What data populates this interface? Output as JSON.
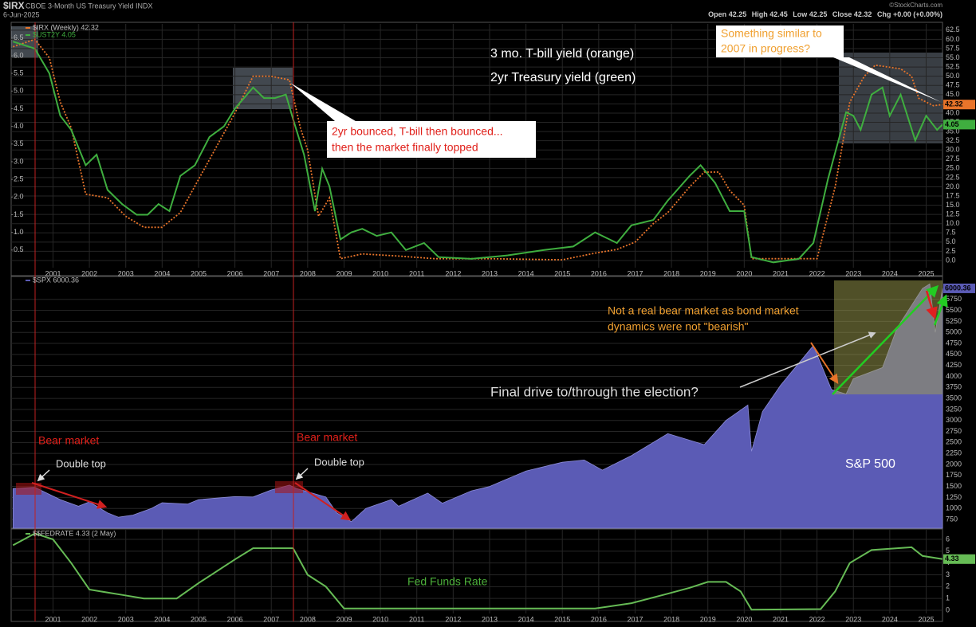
{
  "header": {
    "symbol": "$IRX",
    "description": "CBOE 3-Month US Treasury Yield INDX",
    "date": "6-Jun-2025",
    "source": "©StockCharts.com",
    "stats": [
      {
        "label": "Open",
        "value": 42.25
      },
      {
        "label": "High",
        "value": 42.45
      },
      {
        "label": "Low",
        "value": 42.25
      },
      {
        "label": "Close",
        "value": 42.32
      },
      {
        "label": "Chg",
        "value": "+0.00 (+0.00%)"
      }
    ]
  },
  "chart_data": [
    {
      "type": "line",
      "grid": true,
      "xlim": [
        1999.85,
        2025.45
      ],
      "xticks": [
        2001,
        2002,
        2003,
        2004,
        2005,
        2006,
        2007,
        2008,
        2009,
        2010,
        2011,
        2012,
        2013,
        2014,
        2015,
        2016,
        2017,
        2018,
        2019,
        2020,
        2021,
        2022,
        2023,
        2024,
        2025
      ],
      "ylim": [
        0,
        6.9
      ],
      "yticks": [
        0.5,
        {
          "value": 1,
          "label": "1.0"
        },
        1.5,
        {
          "value": 2,
          "label": "2.0"
        },
        2.5,
        {
          "value": 3,
          "label": "3.0"
        },
        3.5,
        {
          "value": 4,
          "label": "4.0"
        },
        4.5,
        {
          "value": 5,
          "label": "5.0"
        },
        5.5,
        {
          "value": 6,
          "label": "6.0"
        },
        6.5
      ],
      "y2lim": [
        -1.95,
        64.2
      ],
      "y2ticks": [
        {
          "value": 0,
          "label": "0.0"
        },
        2.5,
        {
          "value": 5,
          "label": "5.0"
        },
        7.5,
        {
          "value": 10,
          "label": "10.0"
        },
        12.5,
        {
          "value": 15,
          "label": "15.0"
        },
        17.5,
        {
          "value": 20,
          "label": "20.0"
        },
        22.5,
        {
          "value": 25,
          "label": "25.0"
        },
        27.5,
        {
          "value": 30,
          "label": "30.0"
        },
        32.5,
        {
          "value": 35,
          "label": "35.0"
        },
        37.5,
        {
          "value": 40,
          "label": "40.0"
        },
        42.5,
        {
          "value": 45,
          "label": "45.0"
        },
        47.5,
        {
          "value": 50,
          "label": "50.0"
        },
        52.5,
        {
          "value": 55,
          "label": "55.0"
        },
        57.5,
        {
          "value": 60,
          "label": "60.0"
        },
        62.5
      ],
      "series": [
        {
          "name": "$IRX (Weekly) 42.32",
          "color": "#e8742a",
          "dashed": true,
          "axis": "y2",
          "x": [
            1999.9,
            2000.5,
            2000.9,
            2001.2,
            2001.5,
            2001.9,
            2002.5,
            2003.0,
            2003.5,
            2004.0,
            2004.5,
            2005.0,
            2005.5,
            2006.0,
            2006.5,
            2007.0,
            2007.5,
            2007.8,
            2008.0,
            2008.3,
            2008.6,
            2008.9,
            2009.5,
            2010.5,
            2011.5,
            2013.0,
            2015.0,
            2015.9,
            2016.5,
            2017.0,
            2017.5,
            2017.9,
            2018.5,
            2018.9,
            2019.3,
            2019.6,
            2020.0,
            2020.2,
            2021.5,
            2022.0,
            2022.5,
            2022.9,
            2023.3,
            2023.6,
            2024.3,
            2024.6,
            2024.8,
            2025.2,
            2025.45
          ],
          "values": [
            58,
            60,
            55,
            43,
            36,
            18,
            17,
            12,
            9,
            9,
            13,
            22,
            31,
            40,
            50,
            50,
            49,
            36,
            30,
            12,
            17,
            0.5,
            1.8,
            1.2,
            0.5,
            0.5,
            0.2,
            2,
            3,
            5,
            10,
            13,
            20,
            24,
            24,
            19,
            15,
            0.5,
            0.5,
            0.5,
            20,
            43,
            50,
            53,
            52,
            50,
            44,
            42,
            42.32
          ]
        },
        {
          "name": "$UST2Y 4.05",
          "color": "#3fae3f",
          "dashed": false,
          "x": [
            1999.9,
            2000.5,
            2000.9,
            2001.2,
            2001.5,
            2001.9,
            2002.2,
            2002.5,
            2002.9,
            2003.3,
            2003.6,
            2003.9,
            2004.2,
            2004.5,
            2004.9,
            2005.3,
            2005.7,
            2006.0,
            2006.5,
            2006.8,
            2007.1,
            2007.4,
            2007.6,
            2007.9,
            2008.2,
            2008.4,
            2008.6,
            2008.9,
            2009.2,
            2009.5,
            2009.9,
            2010.3,
            2010.7,
            2011.2,
            2011.6,
            2012.5,
            2013.5,
            2014.5,
            2015.3,
            2015.9,
            2016.5,
            2016.9,
            2017.5,
            2017.9,
            2018.5,
            2018.8,
            2019.2,
            2019.6,
            2020.0,
            2020.2,
            2020.8,
            2021.5,
            2021.9,
            2022.3,
            2022.8,
            2023.0,
            2023.2,
            2023.5,
            2023.8,
            2024.0,
            2024.3,
            2024.7,
            2025.0,
            2025.3,
            2025.45
          ],
          "values": [
            6.4,
            6.2,
            5.5,
            4.3,
            3.9,
            2.9,
            3.2,
            2.2,
            1.8,
            1.5,
            1.5,
            1.8,
            1.6,
            2.6,
            2.9,
            3.7,
            4.0,
            4.5,
            5.1,
            4.8,
            4.8,
            4.9,
            4.2,
            3.2,
            1.6,
            2.8,
            2.3,
            0.8,
            1.0,
            1.1,
            0.9,
            1.0,
            0.5,
            0.7,
            0.3,
            0.25,
            0.35,
            0.5,
            0.6,
            1.0,
            0.7,
            1.2,
            1.35,
            1.9,
            2.6,
            2.9,
            2.4,
            1.6,
            1.6,
            0.3,
            0.15,
            0.25,
            0.7,
            2.5,
            4.4,
            4.3,
            3.9,
            4.9,
            5.1,
            4.3,
            4.9,
            3.6,
            4.3,
            3.9,
            4.05
          ]
        }
      ],
      "annotations": [
        "3 mo. T-bill yield (orange)",
        "2yr Treasury yield (green)",
        "2yr bounced, T-bill then bounced...",
        "then the market finally topped",
        "Something similar to",
        "2007 in progress?"
      ]
    },
    {
      "type": "area",
      "grid": true,
      "xlim": [
        1999.85,
        2025.45
      ],
      "ylim": [
        551,
        6271
      ],
      "yticks": [
        750,
        1000,
        1250,
        1500,
        1750,
        2000,
        2250,
        2500,
        2750,
        3000,
        3250,
        3500,
        3750,
        4000,
        4250,
        4500,
        4750,
        5000,
        5250,
        5500,
        5750
      ],
      "series": [
        {
          "name": "$SPX 6000.36",
          "color": "#5b5bb5",
          "x": [
            1999.9,
            2000.5,
            2000.9,
            2001.2,
            2001.7,
            2002.0,
            2002.5,
            2002.8,
            2003.2,
            2003.7,
            2004.0,
            2004.7,
            2005.0,
            2006.0,
            2006.5,
            2007.0,
            2007.5,
            2007.7,
            2008.0,
            2008.5,
            2008.8,
            2009.2,
            2009.6,
            2010.3,
            2010.5,
            2011.3,
            2011.7,
            2012.5,
            2013.0,
            2014.0,
            2015.0,
            2015.6,
            2016.1,
            2016.9,
            2017.9,
            2018.9,
            2019.5,
            2020.1,
            2020.2,
            2020.5,
            2021.0,
            2021.9,
            2022.4,
            2022.8,
            2023.0,
            2023.8,
            2024.2,
            2024.9,
            2025.1,
            2025.25,
            2025.45
          ],
          "values": [
            1450,
            1480,
            1320,
            1200,
            1050,
            1150,
            900,
            800,
            850,
            1000,
            1130,
            1100,
            1200,
            1270,
            1260,
            1420,
            1530,
            1450,
            1380,
            1260,
            900,
            700,
            1000,
            1200,
            1050,
            1350,
            1120,
            1400,
            1500,
            1850,
            2050,
            2100,
            1870,
            2200,
            2700,
            2450,
            3000,
            3350,
            2300,
            3200,
            3800,
            4700,
            3700,
            3600,
            3950,
            4200,
            5100,
            6000,
            6100,
            5000,
            6000.36
          ]
        }
      ],
      "annotations": [
        "Not a real bear market as bond market",
        "dynamics were not \"bearish\"",
        "Final drive to/through the election?",
        "S&P 500",
        "Bear market",
        "Double top",
        "Bear market",
        "Double top"
      ]
    },
    {
      "type": "line",
      "grid": true,
      "xlim": [
        1999.85,
        2025.45
      ],
      "xticks": [
        2001,
        2002,
        2003,
        2004,
        2005,
        2006,
        2007,
        2008,
        2009,
        2010,
        2011,
        2012,
        2013,
        2014,
        2015,
        2016,
        2017,
        2018,
        2019,
        2020,
        2021,
        2022,
        2023,
        2024,
        2025
      ],
      "ylim": [
        -0.27,
        6.81
      ],
      "yticks": [
        0,
        1,
        2,
        3,
        4,
        5,
        6
      ],
      "series": [
        {
          "name": "$$FEDRATE 4.33 (2 May)",
          "color": "#66bb55",
          "dashed": false,
          "x": [
            1999.9,
            2000.5,
            2001.0,
            2001.5,
            2002.0,
            2002.9,
            2003.5,
            2004.4,
            2005.0,
            2006.0,
            2006.5,
            2007.6,
            2008.0,
            2008.5,
            2009.0,
            2015.9,
            2016.9,
            2017.9,
            2018.5,
            2019.0,
            2019.5,
            2019.9,
            2020.2,
            2022.1,
            2022.5,
            2022.9,
            2023.5,
            2024.6,
            2024.9,
            2025.45
          ],
          "values": [
            5.5,
            6.5,
            6.0,
            4.0,
            1.75,
            1.3,
            1.0,
            1.0,
            2.3,
            4.3,
            5.25,
            5.25,
            3.0,
            2.0,
            0.15,
            0.15,
            0.6,
            1.4,
            1.9,
            2.4,
            2.4,
            1.6,
            0.05,
            0.1,
            1.6,
            4.0,
            5.1,
            5.33,
            4.6,
            4.33
          ]
        }
      ],
      "annotations": [
        "Fed Funds Rate"
      ]
    }
  ]
}
